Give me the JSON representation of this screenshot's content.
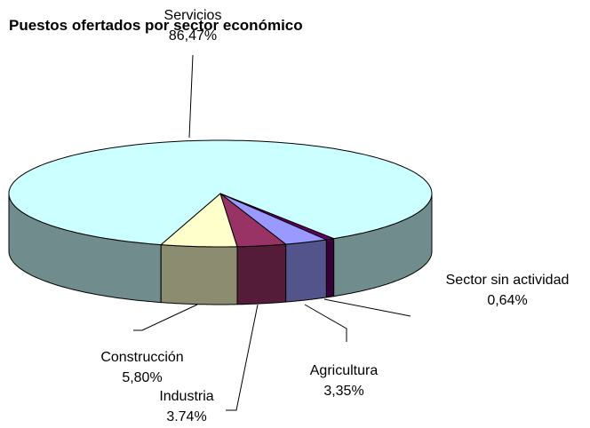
{
  "chart_data": {
    "type": "pie3d",
    "title": "Puestos ofertados por sector económico",
    "categories": [
      "Servicios",
      "Construcción",
      "Industria",
      "Agricultura",
      "Sector sin actividad"
    ],
    "values": [
      86.47,
      5.8,
      3.74,
      3.35,
      0.64
    ],
    "value_labels": [
      "86,47%",
      "5,80%",
      "3.74%",
      "3,35%",
      "0,64%"
    ],
    "colors": [
      "#ccffff",
      "#ffffcc",
      "#993366",
      "#9999ff",
      "#660066"
    ]
  }
}
